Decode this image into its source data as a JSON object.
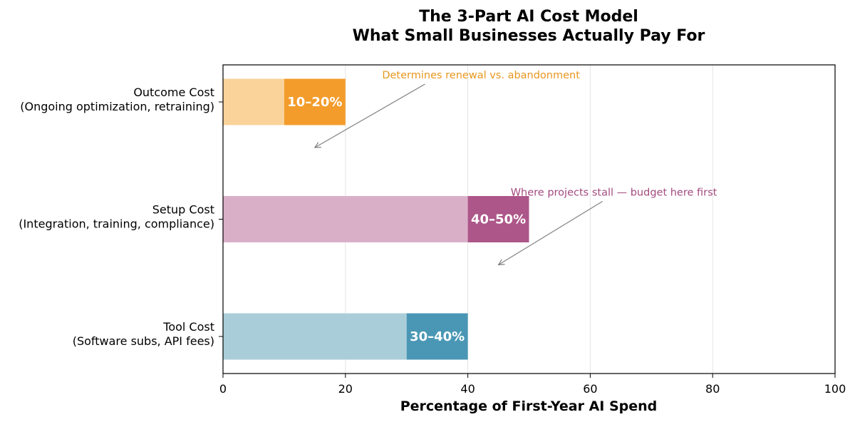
{
  "chart_data": {
    "type": "bar",
    "orientation": "horizontal",
    "stacked": true,
    "title": [
      "The 3-Part AI Cost Model",
      "What Small Businesses Actually Pay For"
    ],
    "xlabel": "Percentage of First-Year AI Spend",
    "xlim": [
      0,
      100
    ],
    "xticks": [
      0,
      20,
      40,
      60,
      80,
      100
    ],
    "grid": "vertical",
    "categories": [
      {
        "lines": [
          "Outcome Cost",
          "(Ongoing optimization, retraining)"
        ],
        "low": 10,
        "high": 20,
        "label": "10–20%",
        "color_light": "#f9d39a",
        "color_dark": "#f39c2b"
      },
      {
        "lines": [
          "Setup Cost",
          "(Integration, training, compliance)"
        ],
        "low": 40,
        "high": 50,
        "label": "40–50%",
        "color_light": "#d9afc8",
        "color_dark": "#ad5689"
      },
      {
        "lines": [
          "Tool Cost",
          "(Software subs, API fees)"
        ],
        "low": 30,
        "high": 40,
        "label": "30–40%",
        "color_light": "#aaced9",
        "color_dark": "#4a97b5"
      }
    ],
    "annotations": [
      {
        "text": "Determines renewal vs. abandonment",
        "category": 0,
        "text_x": 26,
        "text_dy": -0.6,
        "arrow_from": [
          33,
          -0.38
        ],
        "arrow_to": [
          15,
          0.4
        ],
        "color": "#e8961e"
      },
      {
        "text": "Where projects stall — budget here first",
        "category": 1,
        "text_x": 47,
        "text_dy": -0.6,
        "arrow_from": [
          62,
          -0.38
        ],
        "arrow_to": [
          45,
          0.4
        ],
        "color": "#a24a7e"
      }
    ]
  }
}
